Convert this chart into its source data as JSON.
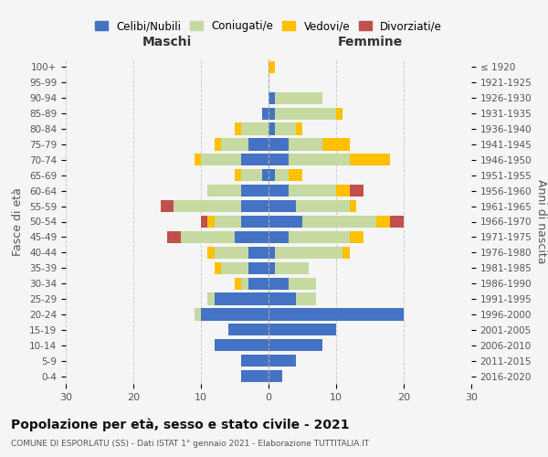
{
  "age_groups_bottom_to_top": [
    "0-4",
    "5-9",
    "10-14",
    "15-19",
    "20-24",
    "25-29",
    "30-34",
    "35-39",
    "40-44",
    "45-49",
    "50-54",
    "55-59",
    "60-64",
    "65-69",
    "70-74",
    "75-79",
    "80-84",
    "85-89",
    "90-94",
    "95-99",
    "100+"
  ],
  "birth_years_bottom_to_top": [
    "2016-2020",
    "2011-2015",
    "2006-2010",
    "2001-2005",
    "1996-2000",
    "1991-1995",
    "1986-1990",
    "1981-1985",
    "1976-1980",
    "1971-1975",
    "1966-1970",
    "1961-1965",
    "1956-1960",
    "1951-1955",
    "1946-1950",
    "1941-1945",
    "1936-1940",
    "1931-1935",
    "1926-1930",
    "1921-1925",
    "≤ 1920"
  ],
  "males_bottom_to_top": {
    "celibi": [
      4,
      4,
      8,
      6,
      10,
      8,
      3,
      3,
      3,
      5,
      4,
      4,
      4,
      1,
      4,
      3,
      0,
      1,
      0,
      0,
      0
    ],
    "coniugati": [
      0,
      0,
      0,
      0,
      1,
      1,
      1,
      4,
      5,
      8,
      4,
      10,
      5,
      3,
      6,
      4,
      4,
      0,
      0,
      0,
      0
    ],
    "vedovi": [
      0,
      0,
      0,
      0,
      0,
      0,
      1,
      1,
      1,
      0,
      1,
      0,
      0,
      1,
      1,
      1,
      1,
      0,
      0,
      0,
      0
    ],
    "divorziati": [
      0,
      0,
      0,
      0,
      0,
      0,
      0,
      0,
      0,
      2,
      1,
      2,
      0,
      0,
      0,
      0,
      0,
      0,
      0,
      0,
      0
    ]
  },
  "females_bottom_to_top": {
    "nubili": [
      2,
      4,
      8,
      10,
      20,
      4,
      3,
      1,
      1,
      3,
      5,
      4,
      3,
      1,
      3,
      3,
      1,
      1,
      1,
      0,
      0
    ],
    "coniugate": [
      0,
      0,
      0,
      0,
      0,
      3,
      4,
      5,
      10,
      9,
      11,
      8,
      7,
      2,
      9,
      5,
      3,
      9,
      7,
      0,
      0
    ],
    "vedove": [
      0,
      0,
      0,
      0,
      0,
      0,
      0,
      0,
      1,
      2,
      2,
      1,
      2,
      2,
      6,
      4,
      1,
      1,
      0,
      0,
      1
    ],
    "divorziate": [
      0,
      0,
      0,
      0,
      0,
      0,
      0,
      0,
      0,
      0,
      2,
      0,
      2,
      0,
      0,
      0,
      0,
      0,
      0,
      0,
      0
    ]
  },
  "colors": {
    "celibi_nubili": "#4472c4",
    "coniugati": "#c5d9a0",
    "vedovi": "#ffc000",
    "divorziati": "#c0504d"
  },
  "title": "Popolazione per età, sesso e stato civile - 2021",
  "subtitle": "COMUNE DI ESPORLATU (SS) - Dati ISTAT 1° gennaio 2021 - Elaborazione TUTTITALIA.IT",
  "xlabel_left": "Maschi",
  "xlabel_right": "Femmine",
  "ylabel_left": "Fasce di età",
  "ylabel_right": "Anni di nascita",
  "xlim": 30,
  "legend_labels": [
    "Celibi/Nubili",
    "Coniugati/e",
    "Vedovi/e",
    "Divorziati/e"
  ],
  "background_color": "#f5f5f5",
  "grid_color": "#cccccc"
}
